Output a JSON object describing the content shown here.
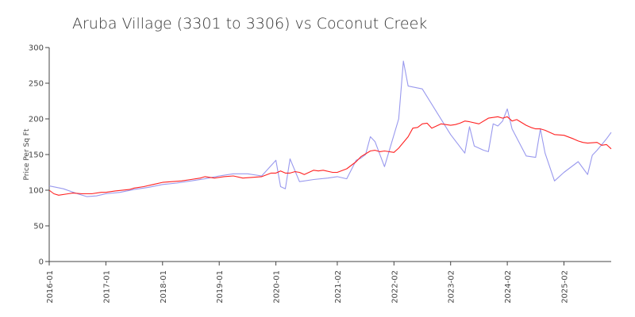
{
  "chart_data": {
    "type": "line",
    "title": "Aruba Village (3301 to 3306) vs Coconut Creek",
    "xlabel": "",
    "ylabel": "Price Per Sq Ft",
    "ylim": [
      0,
      300
    ],
    "yticks": [
      0,
      50,
      100,
      150,
      200,
      250,
      300
    ],
    "xlim": [
      "2016-01",
      "2025-12"
    ],
    "xticks": [
      "2016-01",
      "2017-01",
      "2018-01",
      "2019-01",
      "2020-01",
      "2021-02",
      "2022-02",
      "2023-02",
      "2024-02",
      "2025-02"
    ],
    "grid": false,
    "legend": "none",
    "series": [
      {
        "color": "#9999ee",
        "x": [
          "2016-01",
          "2016-04",
          "2016-07",
          "2016-09",
          "2016-11",
          "2017-01",
          "2017-04",
          "2017-07",
          "2017-10",
          "2018-01",
          "2018-04",
          "2018-07",
          "2018-10",
          "2019-01",
          "2019-04",
          "2019-07",
          "2019-10",
          "2020-01",
          "2020-02",
          "2020-03",
          "2020-04",
          "2020-06",
          "2020-09",
          "2020-12",
          "2021-01",
          "2021-02",
          "2021-04",
          "2021-06",
          "2021-07",
          "2021-08",
          "2021-09",
          "2021-10",
          "2021-12",
          "2022-03",
          "2022-04",
          "2022-05",
          "2022-08",
          "2023-02",
          "2023-05",
          "2023-06",
          "2023-07",
          "2023-09",
          "2023-10",
          "2023-11",
          "2023-12",
          "2024-01",
          "2024-02",
          "2024-03",
          "2024-06",
          "2024-08",
          "2024-09",
          "2024-10",
          "2024-12",
          "2025-02",
          "2025-05",
          "2025-07",
          "2025-08",
          "2025-09",
          "2025-11",
          "2025-12"
        ],
        "values": [
          106,
          102,
          95,
          91,
          92,
          95,
          97,
          101,
          104,
          108,
          110,
          113,
          116,
          120,
          123,
          123,
          120,
          142,
          105,
          102,
          144,
          112,
          115,
          117,
          118,
          119,
          116,
          142,
          145,
          150,
          175,
          168,
          133,
          200,
          281,
          246,
          242,
          178,
          152,
          189,
          162,
          156,
          154,
          193,
          190,
          197,
          214,
          186,
          148,
          146,
          186,
          152,
          113,
          125,
          140,
          122,
          149,
          156,
          172,
          181
        ]
      },
      {
        "color": "#ff2222",
        "x": [
          "2016-01",
          "2016-02",
          "2016-03",
          "2016-05",
          "2016-06",
          "2016-08",
          "2016-10",
          "2016-12",
          "2017-01",
          "2017-03",
          "2017-06",
          "2017-07",
          "2017-09",
          "2017-11",
          "2018-01",
          "2018-03",
          "2018-05",
          "2018-07",
          "2018-09",
          "2018-10",
          "2018-12",
          "2019-02",
          "2019-04",
          "2019-06",
          "2019-08",
          "2019-10",
          "2019-12",
          "2020-01",
          "2020-02",
          "2020-03",
          "2020-04",
          "2020-05",
          "2020-06",
          "2020-07",
          "2020-09",
          "2020-10",
          "2020-11",
          "2021-01",
          "2021-02",
          "2021-04",
          "2021-06",
          "2021-07",
          "2021-08",
          "2021-09",
          "2021-10",
          "2021-11",
          "2021-12",
          "2022-02",
          "2022-03",
          "2022-05",
          "2022-06",
          "2022-07",
          "2022-08",
          "2022-09",
          "2022-10",
          "2022-12",
          "2023-02",
          "2023-03",
          "2023-04",
          "2023-05",
          "2023-06",
          "2023-08",
          "2023-10",
          "2023-12",
          "2024-01",
          "2024-02",
          "2024-03",
          "2024-04",
          "2024-06",
          "2024-07",
          "2024-08",
          "2024-09",
          "2024-10",
          "2024-12",
          "2025-02",
          "2025-04",
          "2025-05",
          "2025-06",
          "2025-07",
          "2025-09",
          "2025-10",
          "2025-11",
          "2025-12"
        ],
        "values": [
          100,
          95,
          93,
          95,
          96,
          95,
          95,
          97,
          97,
          99,
          101,
          103,
          105,
          108,
          111,
          112,
          113,
          115,
          117,
          119,
          117,
          119,
          120,
          117,
          118,
          119,
          124,
          124,
          127,
          124,
          124,
          126,
          125,
          122,
          128,
          127,
          128,
          125,
          125,
          130,
          140,
          147,
          151,
          155,
          156,
          154,
          155,
          153,
          159,
          175,
          187,
          188,
          193,
          194,
          187,
          193,
          191,
          192,
          194,
          197,
          196,
          193,
          201,
          203,
          201,
          203,
          197,
          199,
          191,
          188,
          186,
          186,
          184,
          178,
          177,
          172,
          169,
          167,
          166,
          167,
          163,
          164,
          158
        ]
      }
    ]
  }
}
